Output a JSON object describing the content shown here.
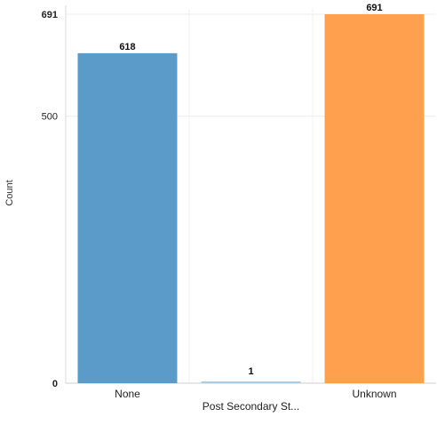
{
  "chart_data": {
    "type": "bar",
    "categories": [
      "None",
      "Post Secondary St...",
      "Unknown"
    ],
    "values": [
      618,
      1,
      691
    ],
    "data_labels": [
      "618",
      "1",
      "691"
    ],
    "colors": [
      "#5b9bc9",
      "#a9cbe6",
      "#ffa04f"
    ],
    "xlabel": "",
    "ylabel": "Count",
    "ylim": [
      0,
      691
    ],
    "y_ticks": [
      {
        "value": 0,
        "label": "0",
        "bold": true
      },
      {
        "value": 500,
        "label": "500",
        "bold": false
      },
      {
        "value": 691,
        "label": "691",
        "bold": true
      }
    ],
    "grid": true,
    "legend": "none"
  }
}
